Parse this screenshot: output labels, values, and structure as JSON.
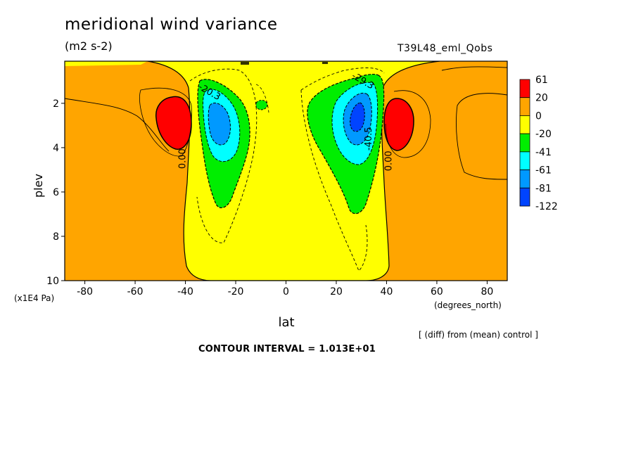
{
  "chart_data": {
    "type": "heatmap",
    "title": "meridional wind variance",
    "subtitle": "(m2 s-2)",
    "run_label": "T39L48_eml_Qobs",
    "xlabel": "lat",
    "xunits": "(degrees_north)",
    "ylabel": "plev",
    "yunits": "(x1E4 Pa)",
    "note": "[ (diff) from (mean) control ]",
    "contour_interval_text": "CONTOUR INTERVAL = 1.013E+01",
    "xlim": [
      -88,
      88
    ],
    "ylim": [
      10,
      0.1
    ],
    "x_ticks": [
      -80,
      -60,
      -40,
      -20,
      0,
      20,
      40,
      60,
      80
    ],
    "y_ticks": [
      2,
      4,
      6,
      8,
      10
    ],
    "colorbar": {
      "labels": [
        "61",
        "20",
        "0",
        "-20",
        "-41",
        "-61",
        "-81",
        "-122"
      ],
      "colors": [
        "#ff0000",
        "#ffa500",
        "#ffff00",
        "#00ee00",
        "#00ffff",
        "#0099ff",
        "#0044ff"
      ]
    },
    "contour_labels": [
      {
        "text": "-20.3",
        "lat": -31,
        "plev": 1.6
      },
      {
        "text": "-29.3",
        "lat": 30,
        "plev": 1.1
      },
      {
        "text": "-40.5",
        "lat": 34,
        "plev": 3.6
      },
      {
        "text": "0.00",
        "lat": -40,
        "plev": 4.5
      },
      {
        "text": "0.00",
        "lat": 42,
        "plev": 4.6
      }
    ],
    "regions": [
      {
        "name": "southern-jet-positive",
        "lat_range": [
          -48,
          -42
        ],
        "plev_range": [
          1.7,
          4.0
        ],
        "min_value": 20
      },
      {
        "name": "northern-jet-positive",
        "lat_range": [
          42,
          48
        ],
        "plev_range": [
          1.7,
          4.0
        ],
        "min_value": 20
      },
      {
        "name": "southern-core-negative",
        "lat_range": [
          -34,
          -22
        ],
        "plev_range": [
          1.5,
          4.5
        ],
        "max_value": -41
      },
      {
        "name": "northern-core-negative",
        "lat_range": [
          22,
          34
        ],
        "plev_range": [
          1.2,
          4.5
        ],
        "max_value": -61
      }
    ]
  }
}
